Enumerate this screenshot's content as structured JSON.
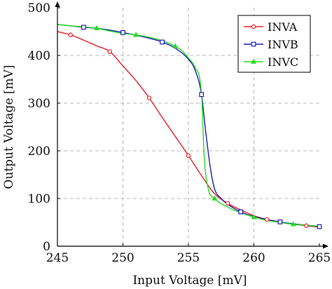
{
  "chart_data": {
    "type": "line",
    "xlabel": "Input Voltage [mV]",
    "ylabel": "Output Voltage [mV]",
    "xlim": [
      245,
      265
    ],
    "ylim": [
      0,
      500
    ],
    "xticks": [
      245,
      250,
      255,
      260,
      265
    ],
    "yticks": [
      0,
      100,
      200,
      300,
      400,
      500
    ],
    "grid": true,
    "legend_position": "top-right",
    "series": [
      {
        "name": "INVA",
        "color": "#e8202a",
        "marker": "circle",
        "x": [
          245,
          246,
          247,
          248,
          249,
          250,
          251,
          252,
          253,
          254,
          255,
          256,
          257,
          258,
          259,
          260,
          261,
          262,
          263,
          264,
          265
        ],
        "y": [
          450,
          443,
          432,
          420,
          408,
          378,
          347,
          311,
          270,
          230,
          190,
          148,
          110,
          90,
          76,
          64,
          56,
          50,
          46,
          43,
          40
        ]
      },
      {
        "name": "INVB",
        "color": "#1f1fb0",
        "marker": "square",
        "x": [
          245,
          247,
          248,
          250,
          252,
          253,
          254,
          255,
          255.5,
          256,
          256.3,
          256.7,
          257,
          257.5,
          258,
          259,
          260,
          261,
          262,
          263,
          264,
          265
        ],
        "y": [
          465,
          459,
          457,
          448,
          436,
          428,
          415,
          392,
          370,
          318,
          245,
          160,
          120,
          100,
          88,
          72,
          62,
          56,
          51,
          47,
          44,
          41
        ]
      },
      {
        "name": "INVC",
        "color": "#22dd22",
        "marker": "triangle",
        "x": [
          245,
          246,
          247,
          248,
          249,
          250,
          251,
          252,
          253,
          254,
          254.5,
          255,
          255.5,
          256,
          256.2,
          256.5,
          257,
          258,
          259,
          260,
          261,
          262,
          263,
          264,
          265
        ],
        "y": [
          465,
          462,
          460,
          457,
          451,
          446,
          443,
          438,
          431,
          419,
          410,
          395,
          375,
          320,
          190,
          122,
          100,
          82,
          70,
          61,
          54,
          50,
          46,
          44,
          42
        ]
      }
    ],
    "marker_x": {
      "INVA": [
        246,
        249,
        252,
        255,
        258,
        261,
        264
      ],
      "INVB": [
        247,
        250,
        253,
        256,
        259,
        262,
        265
      ],
      "INVC": [
        248,
        251,
        254,
        257,
        260,
        263
      ]
    }
  }
}
